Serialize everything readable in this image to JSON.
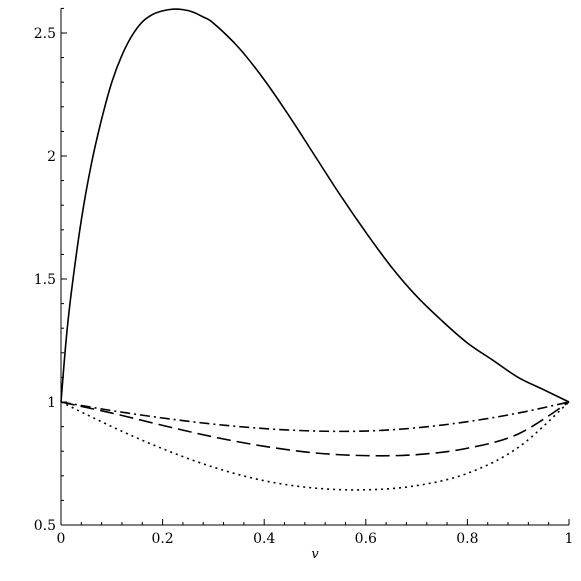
{
  "chart_data": {
    "type": "line",
    "title": "",
    "xlabel": "v",
    "ylabel": "",
    "xlim": [
      0,
      1
    ],
    "ylim": [
      0.5,
      2.6
    ],
    "grid": false,
    "xticks": [
      0,
      0.2,
      0.4,
      0.6,
      0.8,
      1
    ],
    "xtick_labels": [
      "0",
      "0.2",
      "0.4",
      "0.6",
      "0.8",
      "1"
    ],
    "yticks": [
      0.5,
      1,
      1.5,
      2,
      2.5
    ],
    "ytick_labels": [
      "0.5",
      "1",
      "1.5",
      "2",
      "2.5"
    ],
    "series": [
      {
        "line_style": "solid",
        "color": "#000000",
        "x": [
          0,
          0.01,
          0.02,
          0.04,
          0.06,
          0.08,
          0.1,
          0.12,
          0.14,
          0.16,
          0.18,
          0.2,
          0.22,
          0.24,
          0.26,
          0.28,
          0.3,
          0.35,
          0.4,
          0.45,
          0.5,
          0.55,
          0.6,
          0.65,
          0.7,
          0.75,
          0.8,
          0.85,
          0.9,
          0.95,
          1
        ],
        "y": [
          1,
          1.25,
          1.44,
          1.74,
          1.97,
          2.15,
          2.3,
          2.41,
          2.49,
          2.545,
          2.575,
          2.59,
          2.597,
          2.595,
          2.585,
          2.565,
          2.54,
          2.44,
          2.31,
          2.16,
          2.0,
          1.84,
          1.69,
          1.55,
          1.43,
          1.33,
          1.24,
          1.17,
          1.1,
          1.05,
          1
        ]
      },
      {
        "line_style": "dashdot",
        "color": "#000000",
        "x": [
          0,
          0.1,
          0.2,
          0.3,
          0.4,
          0.5,
          0.6,
          0.7,
          0.8,
          0.9,
          1
        ],
        "y": [
          1,
          0.965,
          0.935,
          0.91,
          0.892,
          0.882,
          0.882,
          0.895,
          0.92,
          0.955,
          1
        ]
      },
      {
        "line_style": "dashed",
        "color": "#000000",
        "x": [
          0,
          0.1,
          0.2,
          0.3,
          0.4,
          0.5,
          0.6,
          0.7,
          0.8,
          0.9,
          1
        ],
        "y": [
          1,
          0.955,
          0.905,
          0.858,
          0.82,
          0.793,
          0.782,
          0.786,
          0.812,
          0.87,
          1
        ]
      },
      {
        "line_style": "dotted",
        "color": "#000000",
        "x": [
          0,
          0.1,
          0.2,
          0.3,
          0.4,
          0.5,
          0.6,
          0.7,
          0.8,
          0.9,
          1
        ],
        "y": [
          1,
          0.9,
          0.81,
          0.735,
          0.68,
          0.65,
          0.643,
          0.66,
          0.71,
          0.815,
          1
        ]
      }
    ]
  }
}
